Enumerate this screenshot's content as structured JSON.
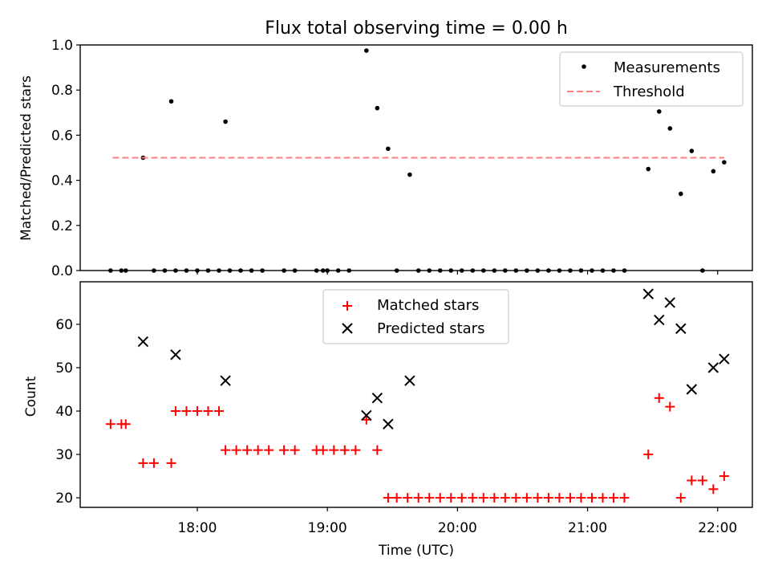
{
  "chart_data": [
    {
      "type": "scatter",
      "title": "Flux total observing time = 0.00 h",
      "xlabel": "",
      "ylabel": "Matched/Predicted stars",
      "ylim": [
        0.0,
        1.0
      ],
      "yticks": [
        "0.0",
        "0.2",
        "0.4",
        "0.6",
        "0.8",
        "1.0"
      ],
      "xlim": [
        "17:06",
        "22:16"
      ],
      "legend_position": "upper-right",
      "series": [
        {
          "name": "Measurements",
          "color": "#000000",
          "marker": "dot",
          "points": [
            [
              "17:20",
              0.0
            ],
            [
              "17:25",
              0.0
            ],
            [
              "17:27",
              0.0
            ],
            [
              "17:35",
              0.5
            ],
            [
              "17:40",
              0.0
            ],
            [
              "17:45",
              0.0
            ],
            [
              "17:48",
              0.75
            ],
            [
              "17:50",
              0.0
            ],
            [
              "17:55",
              0.0
            ],
            [
              "18:00",
              0.0
            ],
            [
              "18:05",
              0.0
            ],
            [
              "18:10",
              0.0
            ],
            [
              "18:13",
              0.66
            ],
            [
              "18:15",
              0.0
            ],
            [
              "18:20",
              0.0
            ],
            [
              "18:25",
              0.0
            ],
            [
              "18:30",
              0.0
            ],
            [
              "18:40",
              0.0
            ],
            [
              "18:45",
              0.0
            ],
            [
              "18:55",
              0.0
            ],
            [
              "18:58",
              0.0
            ],
            [
              "19:00",
              0.0
            ],
            [
              "19:05",
              0.0
            ],
            [
              "19:10",
              0.0
            ],
            [
              "19:18",
              0.975
            ],
            [
              "19:23",
              0.72
            ],
            [
              "19:28",
              0.54
            ],
            [
              "19:32",
              0.0
            ],
            [
              "19:38",
              0.425
            ],
            [
              "19:42",
              0.0
            ],
            [
              "19:47",
              0.0
            ],
            [
              "19:52",
              0.0
            ],
            [
              "19:57",
              0.0
            ],
            [
              "20:02",
              0.0
            ],
            [
              "20:07",
              0.0
            ],
            [
              "20:12",
              0.0
            ],
            [
              "20:17",
              0.0
            ],
            [
              "20:22",
              0.0
            ],
            [
              "20:27",
              0.0
            ],
            [
              "20:32",
              0.0
            ],
            [
              "20:37",
              0.0
            ],
            [
              "20:42",
              0.0
            ],
            [
              "20:47",
              0.0
            ],
            [
              "20:52",
              0.0
            ],
            [
              "20:57",
              0.0
            ],
            [
              "21:02",
              0.0
            ],
            [
              "21:07",
              0.0
            ],
            [
              "21:12",
              0.0
            ],
            [
              "21:17",
              0.0
            ],
            [
              "21:28",
              0.45
            ],
            [
              "21:33",
              0.705
            ],
            [
              "21:38",
              0.63
            ],
            [
              "21:43",
              0.34
            ],
            [
              "21:48",
              0.53
            ],
            [
              "21:53",
              0.0
            ],
            [
              "21:58",
              0.44
            ],
            [
              "22:03",
              0.48
            ]
          ]
        },
        {
          "name": "Threshold",
          "color": "#ff7f7f",
          "style": "dashed",
          "points": [
            [
              "17:21",
              0.5
            ],
            [
              "22:03",
              0.5
            ]
          ]
        }
      ]
    },
    {
      "type": "scatter",
      "title": "",
      "xlabel": "Time (UTC)",
      "ylabel": "Count",
      "ylim": [
        17.8,
        69.8
      ],
      "yticks": [
        20,
        30,
        40,
        50,
        60
      ],
      "xlim": [
        "17:06",
        "22:16"
      ],
      "xticks": [
        "18:00",
        "19:00",
        "20:00",
        "21:00",
        "22:00"
      ],
      "legend_position": "upper-center",
      "series": [
        {
          "name": "Matched stars",
          "color": "#ff0000",
          "marker": "plus",
          "points": [
            [
              "17:20",
              37
            ],
            [
              "17:25",
              37
            ],
            [
              "17:27",
              37
            ],
            [
              "17:35",
              28
            ],
            [
              "17:40",
              28
            ],
            [
              "17:48",
              28
            ],
            [
              "17:50",
              40
            ],
            [
              "17:55",
              40
            ],
            [
              "18:00",
              40
            ],
            [
              "18:05",
              40
            ],
            [
              "18:10",
              40
            ],
            [
              "18:13",
              31
            ],
            [
              "18:18",
              31
            ],
            [
              "18:23",
              31
            ],
            [
              "18:28",
              31
            ],
            [
              "18:33",
              31
            ],
            [
              "18:40",
              31
            ],
            [
              "18:45",
              31
            ],
            [
              "18:55",
              31
            ],
            [
              "18:58",
              31
            ],
            [
              "19:03",
              31
            ],
            [
              "19:08",
              31
            ],
            [
              "19:13",
              31
            ],
            [
              "19:18",
              38
            ],
            [
              "19:23",
              31
            ],
            [
              "19:28",
              20
            ],
            [
              "19:32",
              20
            ],
            [
              "19:37",
              20
            ],
            [
              "19:42",
              20
            ],
            [
              "19:47",
              20
            ],
            [
              "19:52",
              20
            ],
            [
              "19:57",
              20
            ],
            [
              "20:02",
              20
            ],
            [
              "20:07",
              20
            ],
            [
              "20:12",
              20
            ],
            [
              "20:17",
              20
            ],
            [
              "20:22",
              20
            ],
            [
              "20:27",
              20
            ],
            [
              "20:32",
              20
            ],
            [
              "20:37",
              20
            ],
            [
              "20:42",
              20
            ],
            [
              "20:47",
              20
            ],
            [
              "20:52",
              20
            ],
            [
              "20:57",
              20
            ],
            [
              "21:02",
              20
            ],
            [
              "21:07",
              20
            ],
            [
              "21:12",
              20
            ],
            [
              "21:17",
              20
            ],
            [
              "21:28",
              30
            ],
            [
              "21:33",
              43
            ],
            [
              "21:38",
              41
            ],
            [
              "21:43",
              20
            ],
            [
              "21:48",
              24
            ],
            [
              "21:53",
              24
            ],
            [
              "21:58",
              22
            ],
            [
              "22:03",
              25
            ]
          ]
        },
        {
          "name": "Predicted stars",
          "color": "#000000",
          "marker": "x",
          "points": [
            [
              "17:35",
              56
            ],
            [
              "17:50",
              53
            ],
            [
              "18:13",
              47
            ],
            [
              "19:18",
              39
            ],
            [
              "19:23",
              43
            ],
            [
              "19:28",
              37
            ],
            [
              "19:38",
              47
            ],
            [
              "21:28",
              67
            ],
            [
              "21:33",
              61
            ],
            [
              "21:38",
              65
            ],
            [
              "21:43",
              59
            ],
            [
              "21:48",
              45
            ],
            [
              "21:58",
              50
            ],
            [
              "22:03",
              52
            ]
          ]
        }
      ]
    }
  ]
}
